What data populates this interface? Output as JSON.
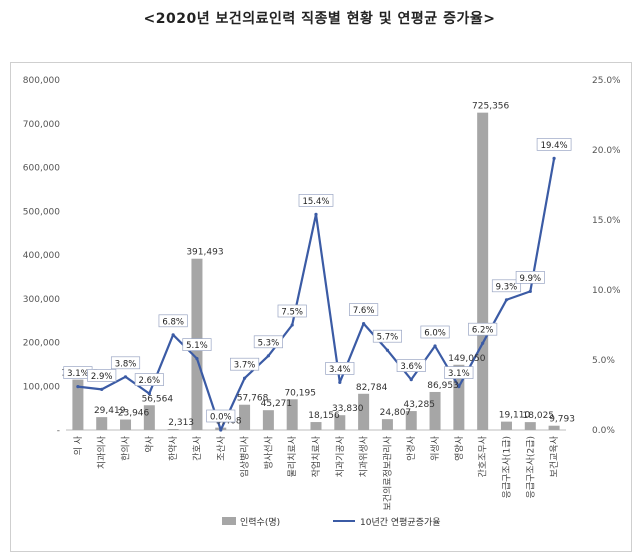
{
  "title": "<2020년 보건의료인력 직종별 현황 및 연평균 증가율>",
  "chart_data": {
    "type": "bar",
    "categories": [
      "의 사",
      "치과의사",
      "한의사",
      "약사",
      "한약사",
      "간호사",
      "조산사",
      "임상병리사",
      "방사선사",
      "물리치료사",
      "작업치료사",
      "치과기공사",
      "치과위생사",
      "보건의료정보관리사",
      "안경사",
      "위생사",
      "영양사",
      "간호조무사",
      "응급구조사(1급)",
      "응급구조사(2급)",
      "보건교육사"
    ],
    "series": [
      {
        "name": "인력수(명)",
        "type": "bar",
        "axis": "left",
        "values": [
          115185,
          29419,
          23946,
          56564,
          2313,
          391493,
          5408,
          57768,
          45271,
          70195,
          18156,
          33830,
          82784,
          24807,
          43285,
          86953,
          149050,
          725356,
          19110,
          18025,
          9793
        ],
        "labels": [
          "115,185",
          "29,419",
          "23,946",
          "56,564",
          "2,313",
          "391,493",
          "5,408",
          "57,768",
          "45,271",
          "70,195",
          "18,156",
          "33,830",
          "82,784",
          "24,807",
          "43,285",
          "86,953",
          "149,050",
          "725,356",
          "19,110",
          "18,025",
          "9,793"
        ]
      },
      {
        "name": "10년간 연평균증가율",
        "type": "line",
        "axis": "right",
        "values": [
          3.1,
          2.9,
          3.8,
          2.6,
          6.8,
          5.1,
          0.0,
          3.7,
          5.3,
          7.5,
          15.4,
          3.4,
          7.6,
          5.7,
          3.6,
          6.0,
          3.1,
          6.2,
          9.3,
          9.9,
          19.4
        ],
        "labels": [
          "3.1%",
          "2.9%",
          "3.8%",
          "2.6%",
          "6.8%",
          "5.1%",
          "0.0%",
          "3.7%",
          "5.3%",
          "7.5%",
          "15.4%",
          "3.4%",
          "7.6%",
          "5.7%",
          "3.6%",
          "6.0%",
          "3.1%",
          "6.2%",
          "9.3%",
          "9.9%",
          "19.4%"
        ]
      }
    ],
    "ylim_left": [
      0,
      800000
    ],
    "ylim_right": [
      0,
      25
    ],
    "left_ticks": [
      "-",
      "100,000",
      "200,000",
      "300,000",
      "400,000",
      "500,000",
      "600,000",
      "700,000",
      "800,000"
    ],
    "right_ticks": [
      "0.0%",
      "5.0%",
      "10.0%",
      "15.0%",
      "20.0%",
      "25.0%"
    ],
    "legend_position": "bottom",
    "colors": {
      "bar": "#a6a6a6",
      "line": "#3b5ba5"
    }
  }
}
